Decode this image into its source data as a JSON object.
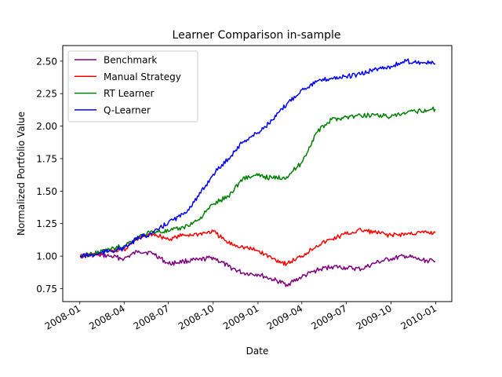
{
  "chart_data": {
    "type": "line",
    "title": "Learner Comparison in-sample",
    "xlabel": "Date",
    "ylabel": "Normalized Portfolio Value",
    "xlim": [
      "2007-11-27",
      "2010-02-03"
    ],
    "ylim": [
      0.65,
      2.62
    ],
    "x_ticks": [
      "2008-01",
      "2008-04",
      "2008-07",
      "2008-10",
      "2009-01",
      "2009-04",
      "2009-07",
      "2009-10",
      "2010-01"
    ],
    "y_ticks": [
      0.75,
      1.0,
      1.25,
      1.5,
      1.75,
      2.0,
      2.25,
      2.5
    ],
    "y_tick_labels": [
      "0.75",
      "1.00",
      "1.25",
      "1.50",
      "1.75",
      "2.00",
      "2.25",
      "2.50"
    ],
    "grid": false,
    "legend_position": "top-left",
    "x": [
      "2008-01-02",
      "2008-02-01",
      "2008-03-01",
      "2008-04-01",
      "2008-05-01",
      "2008-06-01",
      "2008-07-01",
      "2008-08-01",
      "2008-09-01",
      "2008-10-01",
      "2008-11-01",
      "2008-12-01",
      "2009-01-01",
      "2009-02-01",
      "2009-03-01",
      "2009-04-01",
      "2009-05-01",
      "2009-06-01",
      "2009-07-01",
      "2009-08-01",
      "2009-09-01",
      "2009-10-01",
      "2009-11-01",
      "2009-12-01",
      "2009-12-31"
    ],
    "series": [
      {
        "name": "Benchmark",
        "color": "#800080",
        "values": [
          1.0,
          1.01,
          1.0,
          0.98,
          1.04,
          1.02,
          0.94,
          0.96,
          0.97,
          0.99,
          0.92,
          0.87,
          0.86,
          0.82,
          0.78,
          0.84,
          0.89,
          0.92,
          0.91,
          0.9,
          0.95,
          0.98,
          1.0,
          0.97,
          0.96
        ]
      },
      {
        "name": "Manual Strategy",
        "color": "#ff0000",
        "values": [
          1.0,
          1.01,
          1.04,
          1.05,
          1.14,
          1.17,
          1.13,
          1.16,
          1.17,
          1.19,
          1.1,
          1.07,
          1.04,
          0.98,
          0.94,
          1.0,
          1.08,
          1.13,
          1.17,
          1.2,
          1.18,
          1.16,
          1.17,
          1.18,
          1.18
        ]
      },
      {
        "name": "RT Learner",
        "color": "#008000",
        "values": [
          1.0,
          1.02,
          1.05,
          1.08,
          1.15,
          1.19,
          1.19,
          1.22,
          1.28,
          1.4,
          1.46,
          1.6,
          1.62,
          1.6,
          1.61,
          1.72,
          1.95,
          2.05,
          2.07,
          2.08,
          2.09,
          2.07,
          2.1,
          2.12,
          2.13
        ]
      },
      {
        "name": "Q-Learner",
        "color": "#0000ff",
        "values": [
          1.0,
          1.01,
          1.04,
          1.06,
          1.14,
          1.18,
          1.26,
          1.32,
          1.46,
          1.63,
          1.75,
          1.88,
          1.95,
          2.05,
          2.17,
          2.28,
          2.34,
          2.37,
          2.38,
          2.4,
          2.44,
          2.46,
          2.5,
          2.49,
          2.48
        ]
      }
    ]
  }
}
